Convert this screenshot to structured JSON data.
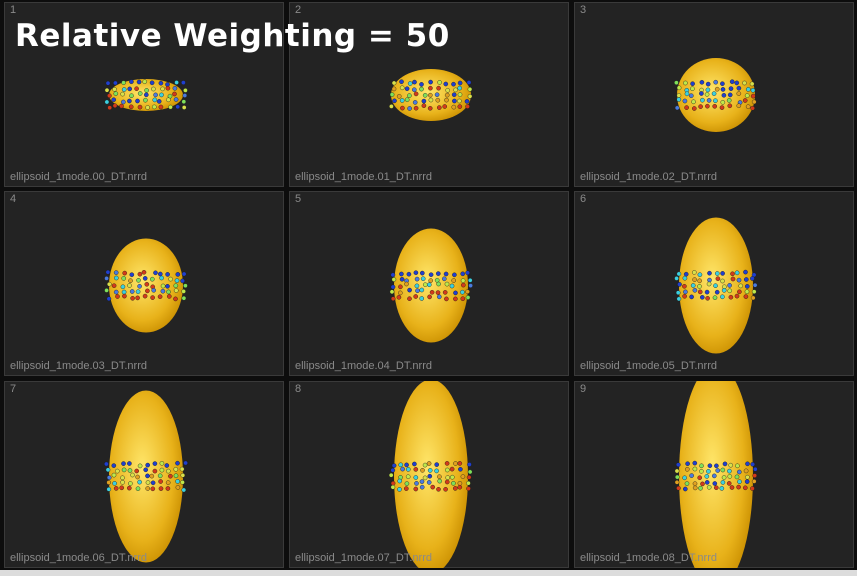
{
  "title": "Relative Weighting = 50",
  "colors": {
    "background": "#0d0d0d",
    "viewport": "#232323",
    "ellipsoid_center": "#ffe66a",
    "ellipsoid_edge": "#c98e00",
    "label": "#8a8a8a"
  },
  "views": [
    {
      "index": "1",
      "filename": "ellipsoid_1mode.00_DT.nrrd"
    },
    {
      "index": "2",
      "filename": "ellipsoid_1mode.01_DT.nrrd"
    },
    {
      "index": "3",
      "filename": "ellipsoid_1mode.02_DT.nrrd"
    },
    {
      "index": "4",
      "filename": "ellipsoid_1mode.03_DT.nrrd"
    },
    {
      "index": "5",
      "filename": "ellipsoid_1mode.04_DT.nrrd"
    },
    {
      "index": "6",
      "filename": "ellipsoid_1mode.05_DT.nrrd"
    },
    {
      "index": "7",
      "filename": "ellipsoid_1mode.06_DT.nrrd"
    },
    {
      "index": "8",
      "filename": "ellipsoid_1mode.07_DT.nrrd"
    },
    {
      "index": "9",
      "filename": "ellipsoid_1mode.08_DT.nrrd"
    }
  ]
}
